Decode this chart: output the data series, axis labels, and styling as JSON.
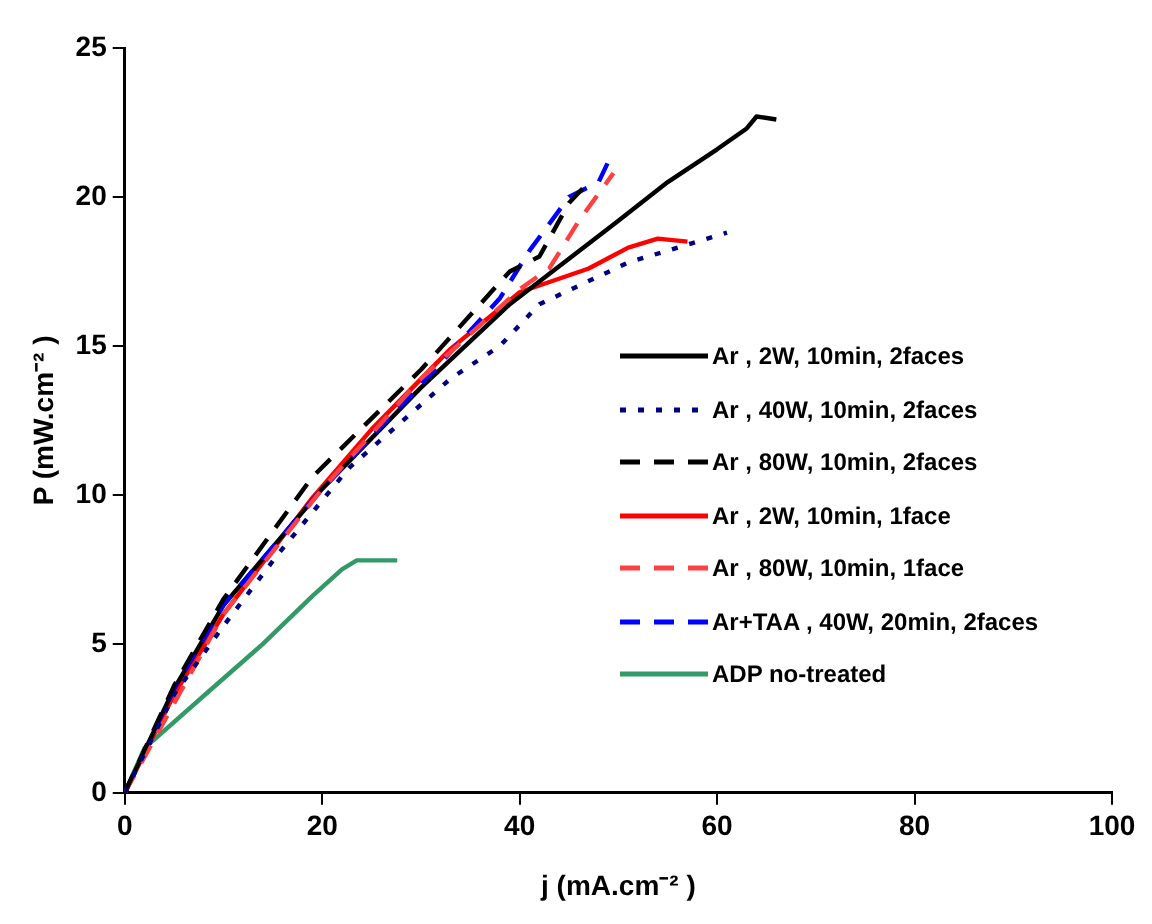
{
  "chart_data": {
    "type": "line",
    "xlabel": "j (mA.cm⁻² )",
    "ylabel": "P (mW.cm⁻² )",
    "xlim": [
      0,
      100
    ],
    "xticks": [
      0,
      20,
      40,
      60,
      80,
      100
    ],
    "ylim": [
      0,
      25
    ],
    "yticks": [
      0,
      5,
      10,
      15,
      20,
      25
    ],
    "grid": false,
    "legend": "right",
    "marker": "none",
    "series": [
      {
        "name": "Ar , 2W, 10min, 2faces",
        "color": "#000000",
        "line_style": "solid",
        "x": [
          0,
          5,
          10,
          20,
          30,
          39,
          50,
          55,
          60,
          63,
          64,
          66
        ],
        "values": [
          0,
          3.5,
          6.3,
          10.2,
          13.6,
          16.4,
          19.2,
          20.5,
          21.6,
          22.3,
          22.7,
          22.6
        ]
      },
      {
        "name": "Ar , 40W, 10min, 2faces",
        "color": "#000080",
        "line_style": "dotted",
        "x": [
          0,
          5,
          10,
          15.5,
          22.7,
          33,
          38,
          42,
          51,
          55,
          61
        ],
        "values": [
          0,
          3.3,
          5.6,
          8,
          10.9,
          13.9,
          15,
          16.4,
          17.8,
          18.2,
          18.8
        ]
      },
      {
        "name": "Ar , 80W, 10min, 2faces",
        "color": "#000000",
        "line_style": "dashed",
        "x": [
          0,
          5,
          10,
          19,
          30,
          39,
          42,
          45,
          47
        ],
        "values": [
          0,
          3.6,
          6.5,
          10.6,
          14.2,
          17.5,
          18,
          19.8,
          20.5
        ]
      },
      {
        "name": "Ar , 2W, 10min, 1face",
        "color": "#ff0000",
        "line_style": "solid",
        "x": [
          0,
          5,
          10,
          19,
          25,
          33,
          40,
          47,
          51,
          54,
          57
        ],
        "values": [
          0,
          3.3,
          6,
          9.9,
          12.2,
          14.9,
          16.8,
          17.6,
          18.3,
          18.6,
          18.5
        ]
      },
      {
        "name": "Ar , 80W, 10min, 1face",
        "color": "#ff4040",
        "line_style": "dashed",
        "x": [
          0,
          10,
          20,
          30,
          40,
          43,
          46,
          49.5
        ],
        "values": [
          0,
          6,
          10.2,
          13.9,
          16.9,
          17.6,
          19.2,
          20.8
        ]
      },
      {
        "name": "Ar+TAA , 40W, 20min, 2faces",
        "color": "#0000ff",
        "line_style": "dashed",
        "x": [
          0,
          5,
          10,
          20,
          30,
          38,
          41,
          45,
          48,
          49
        ],
        "values": [
          0,
          3.5,
          6.3,
          10.2,
          13.7,
          16.6,
          18.2,
          20,
          20.5,
          21.2
        ]
      },
      {
        "name": "ADP no-treated",
        "color": "#339966",
        "line_style": "solid",
        "x": [
          0,
          2,
          8.5,
          14,
          19,
          22,
          23.5,
          27.6
        ],
        "values": [
          0,
          1.5,
          3.4,
          5,
          6.6,
          7.5,
          7.8,
          7.8
        ]
      }
    ]
  }
}
